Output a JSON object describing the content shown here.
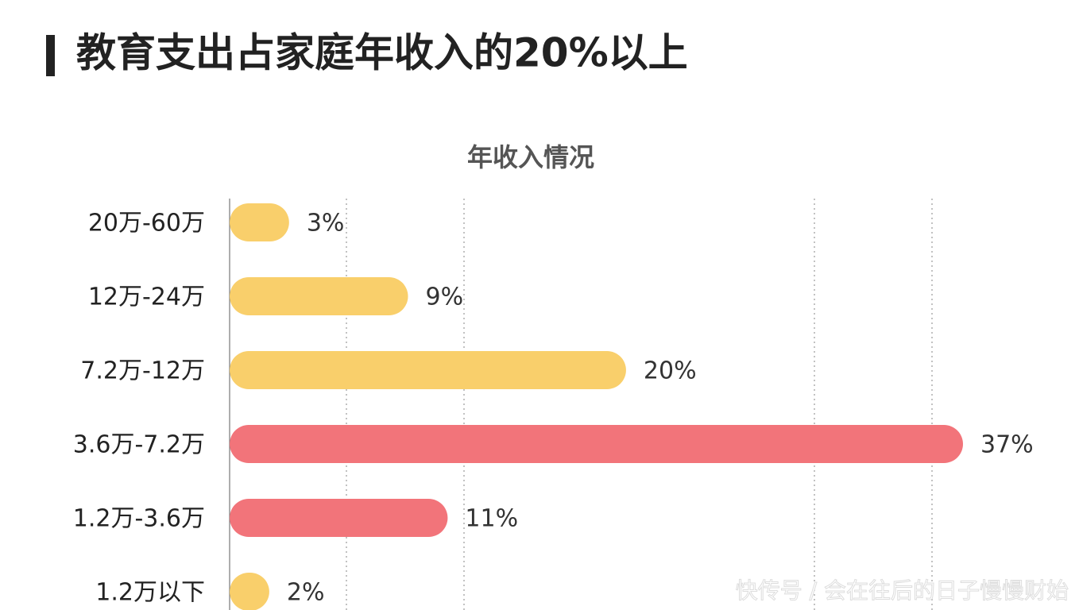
{
  "chart_data": {
    "type": "bar",
    "orientation": "horizontal",
    "title": "教育支出占家庭年收入的20%以上",
    "subtitle": "年收入情况",
    "categories": [
      "20万-60万",
      "12万-24万",
      "7.2万-12万",
      "3.6万-7.2万",
      "1.2万-3.6万",
      "1.2万以下"
    ],
    "values": [
      3,
      9,
      20,
      37,
      11,
      2
    ],
    "value_labels": [
      "3%",
      "9%",
      "20%",
      "37%",
      "11%",
      "2%"
    ],
    "colors": [
      "#f9cf6b",
      "#f9cf6b",
      "#f9cf6b",
      "#f2747a",
      "#f2747a",
      "#f9cf6b"
    ],
    "xlim": [
      0,
      37
    ],
    "watermark": "快传号 / 会在往后的日子慢慢财始"
  }
}
